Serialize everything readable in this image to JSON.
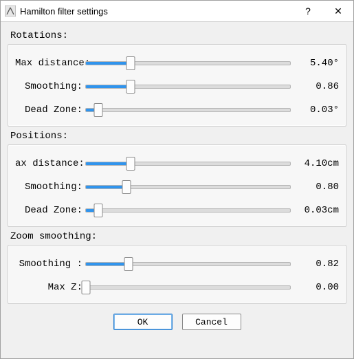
{
  "window": {
    "title": "Hamilton filter settings",
    "help_glyph": "?",
    "close_glyph": "✕"
  },
  "colors": {
    "accent": "#3094ed",
    "track": "#dcdcdc",
    "panel_bg": "#f7f7f7",
    "panel_border": "#cfcfcf",
    "window_bg": "#f0f0f0",
    "titlebar_bg": "#ffffff"
  },
  "sections": [
    {
      "label": "Rotations:",
      "rows": [
        {
          "name": "rot-max-distance",
          "label": "Max distance:",
          "value_display": "5.40°",
          "percent": 22
        },
        {
          "name": "rot-smoothing",
          "label": "Smoothing:",
          "value_display": "0.86",
          "percent": 22
        },
        {
          "name": "rot-dead-zone",
          "label": "Dead Zone:",
          "value_display": "0.03°",
          "percent": 6
        }
      ]
    },
    {
      "label": "Positions:",
      "rows": [
        {
          "name": "pos-max-distance",
          "label": "ax distance:",
          "value_display": "4.10cm",
          "percent": 22
        },
        {
          "name": "pos-smoothing",
          "label": "Smoothing:",
          "value_display": "0.80",
          "percent": 20
        },
        {
          "name": "pos-dead-zone",
          "label": "Dead Zone:",
          "value_display": "0.03cm",
          "percent": 6
        }
      ]
    },
    {
      "label": "Zoom smoothing:",
      "rows": [
        {
          "name": "zoom-smoothing",
          "label": "Smoothing :",
          "value_display": "0.82",
          "percent": 21
        },
        {
          "name": "zoom-max-z",
          "label": "Max Z:",
          "value_display": "0.00",
          "percent": 0
        }
      ]
    }
  ],
  "buttons": {
    "ok": "OK",
    "cancel": "Cancel"
  }
}
